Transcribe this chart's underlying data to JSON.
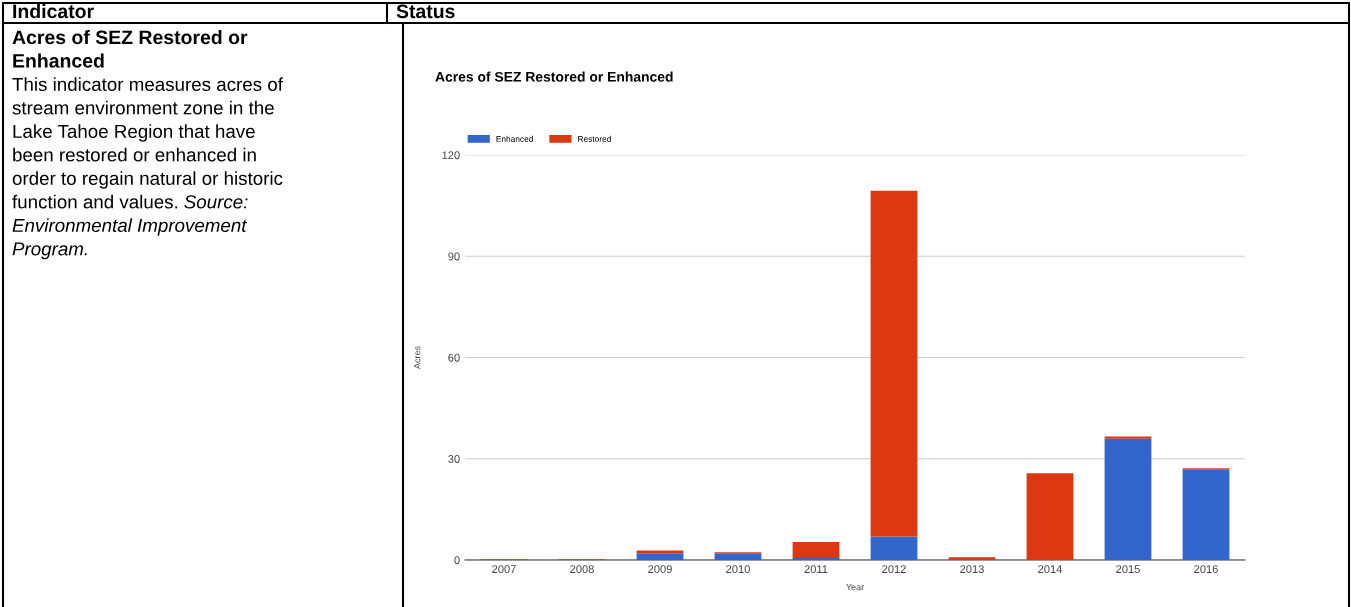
{
  "chart_data": {
    "type": "bar",
    "stacked": true,
    "title": "Acres of SEZ Restored or Enhanced",
    "xlabel": "Year",
    "ylabel": "Acres",
    "categories": [
      "2007",
      "2008",
      "2009",
      "2010",
      "2011",
      "2012",
      "2013",
      "2014",
      "2015",
      "2016"
    ],
    "series": [
      {
        "name": "Enhanced",
        "color": "#3366cc",
        "values": [
          0,
          0,
          2.0,
          2.0,
          0.9,
          7.0,
          0,
          0,
          35.9,
          26.9
        ]
      },
      {
        "name": "Restored",
        "color": "#dc3912",
        "values": [
          0.2,
          0.2,
          0.8,
          0.3,
          4.4,
          102.4,
          0.8,
          25.7,
          0.7,
          0.3
        ]
      }
    ],
    "ylim": [
      0,
      120
    ],
    "yticks": [
      0,
      30,
      60,
      90,
      120
    ],
    "grid": "y",
    "legend": "top left",
    "annotations": [
      "Indicator",
      "Status",
      "Acres of SEZ Restored or",
      "Enhanced",
      "This indicator measures acres of",
      "stream environment zone in the",
      "Lake Tahoe Region that have",
      "been restored or enhanced in",
      "order to regain natural or historic",
      "function and values.",
      "Source:",
      "Environmental Improvement",
      "Program."
    ]
  }
}
